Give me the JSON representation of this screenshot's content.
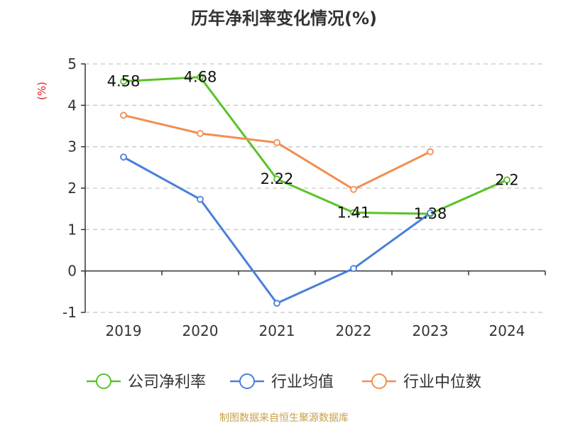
{
  "title": "历年净利率变化情况(%)",
  "source_text": "制图数据来自恒生聚源数据库",
  "chart_data": {
    "type": "line",
    "title": "历年净利率变化情况(%)",
    "ylabel": "(%)",
    "xlabel": "",
    "categories": [
      "2019",
      "2020",
      "2021",
      "2022",
      "2023",
      "2024"
    ],
    "ylim": [
      -1,
      5
    ],
    "yticks": [
      -1,
      0,
      1,
      2,
      3,
      4,
      5
    ],
    "grid": true,
    "legend_position": "bottom",
    "series": [
      {
        "name": "公司净利率",
        "color": "#5ac229",
        "values": [
          4.58,
          4.68,
          2.22,
          1.41,
          1.38,
          2.2
        ],
        "labels": [
          "4.58",
          "4.68",
          "2.22",
          "1.41",
          "1.38",
          "2.2"
        ]
      },
      {
        "name": "行业均值",
        "color": "#4a7fdb",
        "values": [
          2.75,
          1.73,
          -0.78,
          0.06,
          1.4,
          null
        ]
      },
      {
        "name": "行业中位数",
        "color": "#f28e52",
        "values": [
          3.76,
          3.32,
          3.1,
          1.97,
          2.88,
          null
        ]
      }
    ]
  }
}
